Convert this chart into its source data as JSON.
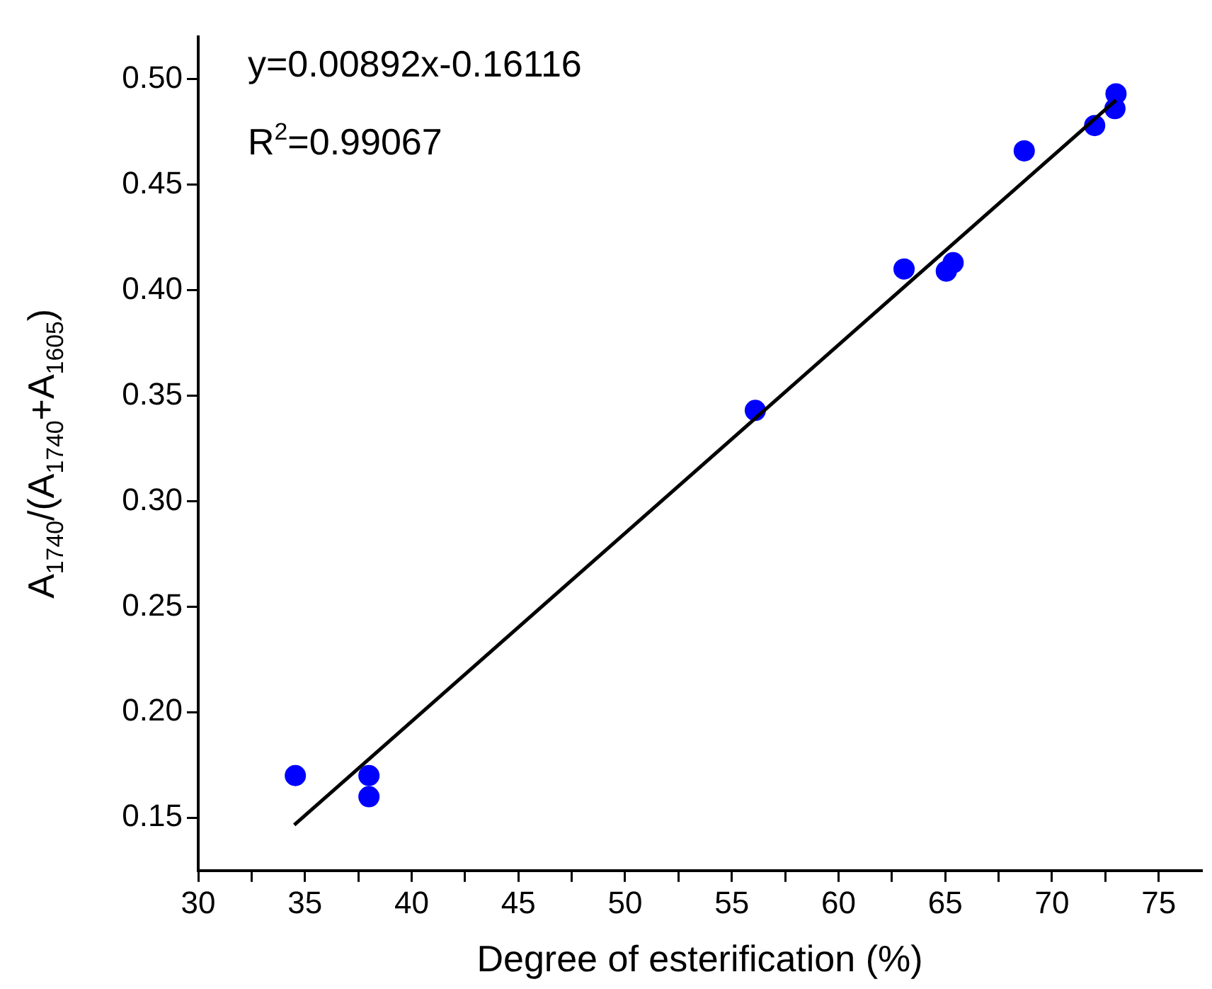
{
  "chart_data": {
    "type": "scatter",
    "xlabel": "Degree of esterification (%)",
    "ylabel": "A$_{1740}$/(A$_{1740}$+A$_{1605}$)",
    "annotations": [
      "y=0.00892x-0.16116",
      "R$^{2}$=0.99067"
    ],
    "series": [
      {
        "color": "#0000ff",
        "marker": "circle",
        "x": [
          34.55,
          38.0,
          38.0,
          56.1,
          63.07,
          65.05,
          65.37,
          68.7,
          72.0,
          72.95,
          73.0
        ],
        "values": [
          0.17,
          0.17,
          0.16,
          0.343,
          0.41,
          0.409,
          0.413,
          0.466,
          0.478,
          0.486,
          0.493
        ]
      },
      {
        "type": "line",
        "color": "#000000",
        "marker": "none",
        "line_style": "solid",
        "x": [
          34.5,
          73.0
        ],
        "values": [
          0.1466,
          0.49
        ]
      }
    ],
    "xlim": [
      30,
      77
    ],
    "ylim": [
      0.125,
      0.52
    ],
    "xticks": [
      30,
      {
        "value": 32.5,
        "label": null
      },
      35,
      {
        "value": 37.5,
        "label": null
      },
      40,
      {
        "value": 42.5,
        "label": null
      },
      45,
      {
        "value": 47.5,
        "label": null
      },
      50,
      {
        "value": 52.5,
        "label": null
      },
      55,
      {
        "value": 57.5,
        "label": null
      },
      60,
      {
        "value": 62.5,
        "label": null
      },
      65,
      {
        "value": 67.5,
        "label": null
      },
      70,
      {
        "value": 72.5,
        "label": null
      },
      75
    ],
    "yticks": [
      {
        "value": 0.15,
        "label": "0.15"
      },
      {
        "value": 0.2,
        "label": "0.20"
      },
      {
        "value": 0.25,
        "label": "0.25"
      },
      {
        "value": 0.3,
        "label": "0.30"
      },
      {
        "value": 0.35,
        "label": "0.35"
      },
      {
        "value": 0.4,
        "label": "0.40"
      },
      {
        "value": 0.45,
        "label": "0.45"
      },
      {
        "value": 0.5,
        "label": "0.50"
      }
    ],
    "grid": false,
    "legend": false
  }
}
